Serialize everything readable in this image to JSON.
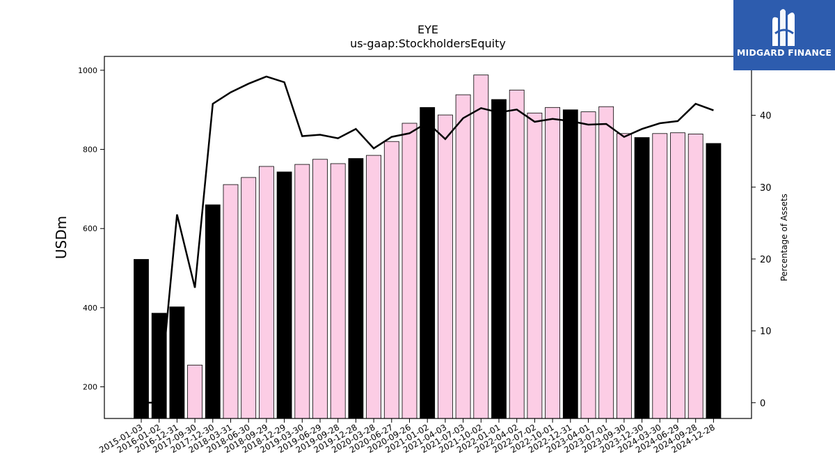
{
  "logo": {
    "text": "MIDGARD FINANCE"
  },
  "chart_data": {
    "type": "bar",
    "title": "EYE",
    "subtitle": "us-gaap:StockholdersEquity",
    "ylabel": "USDm",
    "y2label": "Percentage of Assets",
    "ylim": [
      120,
      1035
    ],
    "y2lim": [
      -2.2,
      48.2
    ],
    "yticks": [
      200,
      400,
      600,
      800,
      1000
    ],
    "y2ticks": [
      0,
      10,
      20,
      30,
      40
    ],
    "categories": [
      "2015-01-03",
      "2016-01-02",
      "2016-12-31",
      "2017-09-30",
      "2017-12-30",
      "2018-03-31",
      "2018-06-30",
      "2018-09-29",
      "2018-12-29",
      "2019-03-30",
      "2019-06-29",
      "2019-09-28",
      "2019-12-28",
      "2020-03-28",
      "2020-06-27",
      "2020-09-26",
      "2021-01-02",
      "2021-04-03",
      "2021-07-03",
      "2021-10-02",
      "2022-01-01",
      "2022-04-02",
      "2022-07-02",
      "2022-10-01",
      "2022-12-31",
      "2023-04-01",
      "2023-07-01",
      "2023-09-30",
      "2023-12-30",
      "2024-03-30",
      "2024-06-29",
      "2024-09-28",
      "2024-12-28"
    ],
    "series": [
      {
        "kind": "bar",
        "values": [
          522,
          386,
          402,
          255,
          660,
          711,
          729,
          757,
          743,
          762,
          775,
          764,
          777,
          785,
          820,
          866,
          906,
          887,
          938,
          988,
          926,
          950,
          892,
          906,
          900,
          895,
          908,
          840,
          830,
          840,
          842,
          839,
          815
        ],
        "year_end": [
          true,
          true,
          true,
          false,
          true,
          false,
          false,
          false,
          true,
          false,
          false,
          false,
          true,
          false,
          false,
          false,
          true,
          false,
          false,
          false,
          true,
          false,
          false,
          false,
          true,
          false,
          false,
          false,
          true,
          false,
          false,
          false,
          true
        ]
      },
      {
        "kind": "line",
        "axis": "right",
        "values": [
          0.0,
          0.0,
          26.2,
          16.0,
          41.6,
          43.2,
          44.4,
          45.4,
          44.6,
          37.1,
          37.3,
          36.8,
          38.1,
          35.4,
          37.0,
          37.5,
          39.0,
          36.7,
          39.6,
          41.0,
          40.4,
          40.8,
          39.1,
          39.5,
          39.2,
          38.7,
          38.8,
          37.0,
          38.1,
          38.9,
          39.2,
          41.6,
          40.7
        ]
      }
    ],
    "colors": {
      "year_end_bar": "#000000",
      "quarter_bar": "#fccde5",
      "line": "#000000"
    }
  }
}
